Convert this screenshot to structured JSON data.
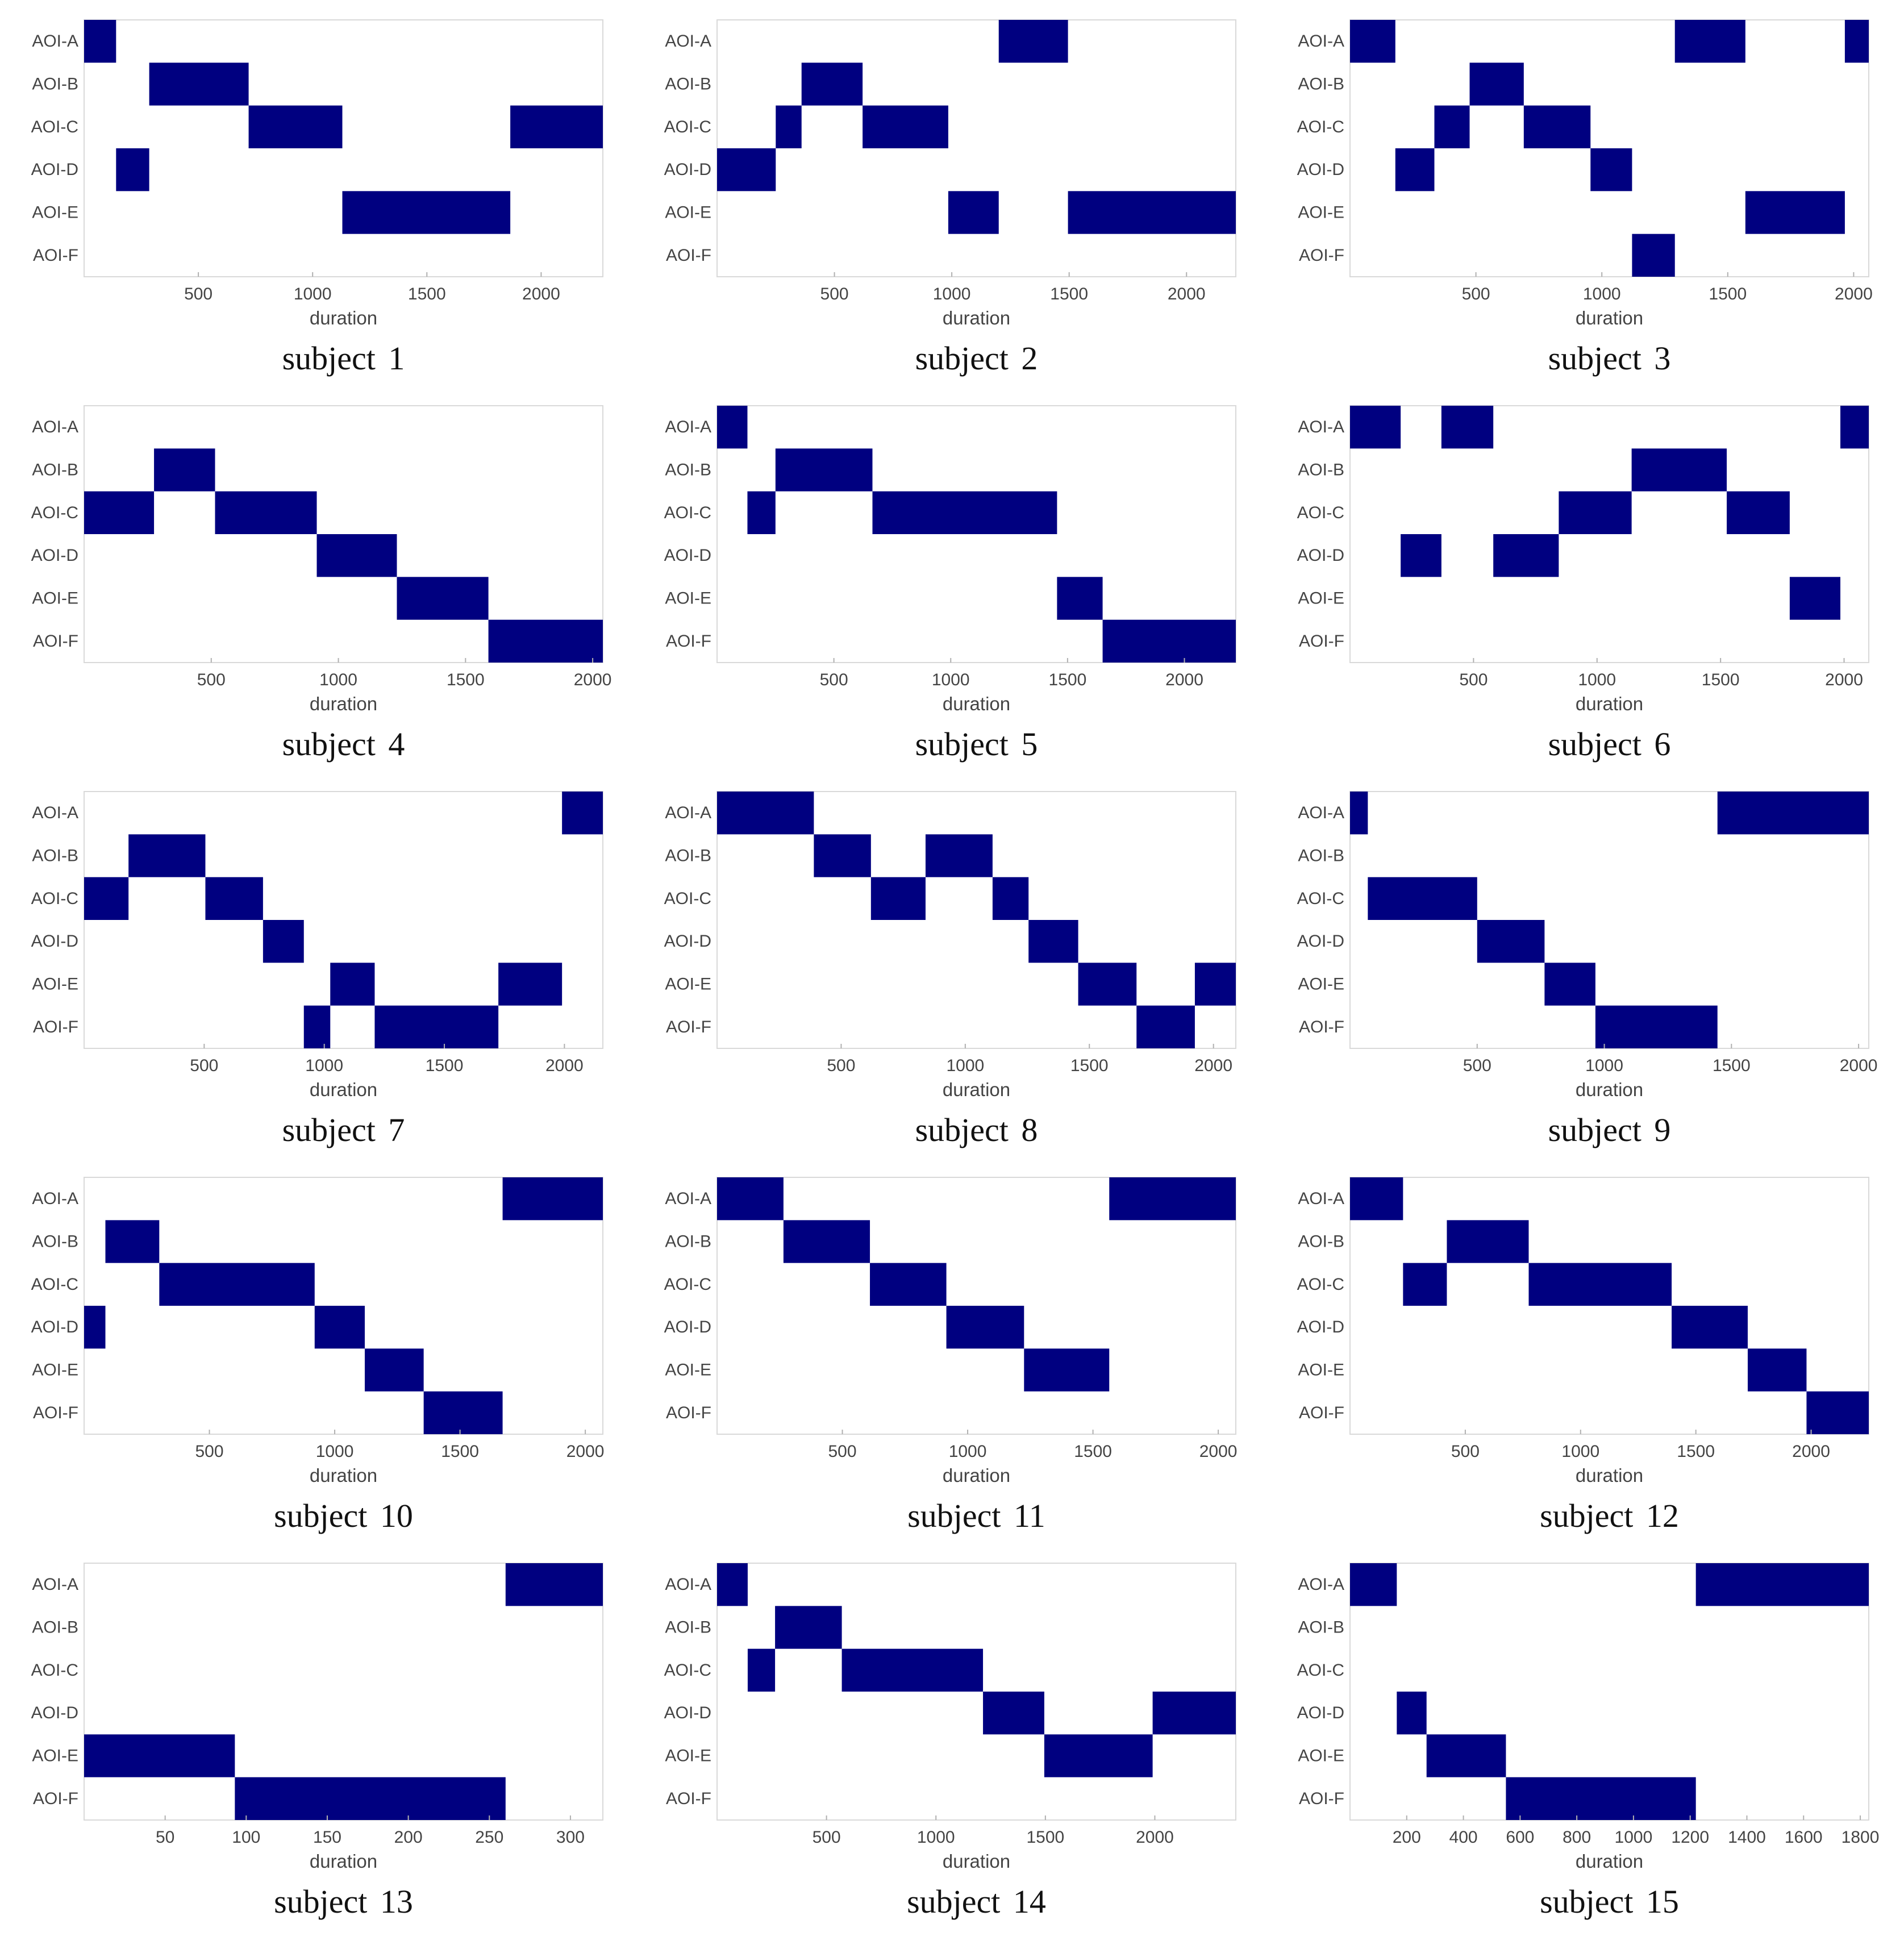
{
  "colors": {
    "bar": "#000080",
    "frame": "#d9d9d9",
    "text": "#444444",
    "background": "#ffffff"
  },
  "chart_data": [
    {
      "type": "bar",
      "caption": "subject 1",
      "xlabel": "duration",
      "categories": [
        "AOI-A",
        "AOI-B",
        "AOI-C",
        "AOI-D",
        "AOI-E",
        "AOI-F"
      ],
      "xlim": [
        0,
        2270
      ],
      "xticks": [
        500,
        1000,
        1500,
        2000
      ],
      "segments": [
        {
          "aoi": "AOI-A",
          "start": 0,
          "end": 140
        },
        {
          "aoi": "AOI-D",
          "start": 140,
          "end": 285
        },
        {
          "aoi": "AOI-B",
          "start": 285,
          "end": 720
        },
        {
          "aoi": "AOI-C",
          "start": 720,
          "end": 1130
        },
        {
          "aoi": "AOI-E",
          "start": 1130,
          "end": 1865
        },
        {
          "aoi": "AOI-C",
          "start": 1865,
          "end": 2270
        }
      ]
    },
    {
      "type": "bar",
      "caption": "subject 2",
      "xlabel": "duration",
      "categories": [
        "AOI-A",
        "AOI-B",
        "AOI-C",
        "AOI-D",
        "AOI-E",
        "AOI-F"
      ],
      "xlim": [
        0,
        2210
      ],
      "xticks": [
        500,
        1000,
        1500,
        2000
      ],
      "segments": [
        {
          "aoi": "AOI-D",
          "start": 0,
          "end": 250
        },
        {
          "aoi": "AOI-C",
          "start": 250,
          "end": 360
        },
        {
          "aoi": "AOI-B",
          "start": 360,
          "end": 620
        },
        {
          "aoi": "AOI-C",
          "start": 620,
          "end": 985
        },
        {
          "aoi": "AOI-E",
          "start": 985,
          "end": 1200
        },
        {
          "aoi": "AOI-A",
          "start": 1200,
          "end": 1495
        },
        {
          "aoi": "AOI-E",
          "start": 1495,
          "end": 2210
        }
      ]
    },
    {
      "type": "bar",
      "caption": "subject 3",
      "xlabel": "duration",
      "categories": [
        "AOI-A",
        "AOI-B",
        "AOI-C",
        "AOI-D",
        "AOI-E",
        "AOI-F"
      ],
      "xlim": [
        0,
        2060
      ],
      "xticks": [
        500,
        1000,
        1500,
        2000
      ],
      "segments": [
        {
          "aoi": "AOI-A",
          "start": 0,
          "end": 180
        },
        {
          "aoi": "AOI-D",
          "start": 180,
          "end": 335
        },
        {
          "aoi": "AOI-C",
          "start": 335,
          "end": 475
        },
        {
          "aoi": "AOI-B",
          "start": 475,
          "end": 690
        },
        {
          "aoi": "AOI-C",
          "start": 690,
          "end": 955
        },
        {
          "aoi": "AOI-D",
          "start": 955,
          "end": 1120
        },
        {
          "aoi": "AOI-F",
          "start": 1120,
          "end": 1290
        },
        {
          "aoi": "AOI-A",
          "start": 1290,
          "end": 1570
        },
        {
          "aoi": "AOI-E",
          "start": 1570,
          "end": 1965
        },
        {
          "aoi": "AOI-A",
          "start": 1965,
          "end": 2060
        }
      ]
    },
    {
      "type": "bar",
      "caption": "subject 4",
      "xlabel": "duration",
      "categories": [
        "AOI-A",
        "AOI-B",
        "AOI-C",
        "AOI-D",
        "AOI-E",
        "AOI-F"
      ],
      "xlim": [
        0,
        2040
      ],
      "xticks": [
        500,
        1000,
        1500,
        2000
      ],
      "segments": [
        {
          "aoi": "AOI-C",
          "start": 0,
          "end": 275
        },
        {
          "aoi": "AOI-B",
          "start": 275,
          "end": 515
        },
        {
          "aoi": "AOI-C",
          "start": 515,
          "end": 915
        },
        {
          "aoi": "AOI-D",
          "start": 915,
          "end": 1230
        },
        {
          "aoi": "AOI-E",
          "start": 1230,
          "end": 1590
        },
        {
          "aoi": "AOI-F",
          "start": 1590,
          "end": 2040
        }
      ]
    },
    {
      "type": "bar",
      "caption": "subject 5",
      "xlabel": "duration",
      "categories": [
        "AOI-A",
        "AOI-B",
        "AOI-C",
        "AOI-D",
        "AOI-E",
        "AOI-F"
      ],
      "xlim": [
        0,
        2220
      ],
      "xticks": [
        500,
        1000,
        1500,
        2000
      ],
      "segments": [
        {
          "aoi": "AOI-A",
          "start": 0,
          "end": 130
        },
        {
          "aoi": "AOI-C",
          "start": 130,
          "end": 250
        },
        {
          "aoi": "AOI-B",
          "start": 250,
          "end": 665
        },
        {
          "aoi": "AOI-C",
          "start": 665,
          "end": 1455
        },
        {
          "aoi": "AOI-E",
          "start": 1455,
          "end": 1650
        },
        {
          "aoi": "AOI-F",
          "start": 1650,
          "end": 2220
        }
      ]
    },
    {
      "type": "bar",
      "caption": "subject 6",
      "xlabel": "duration",
      "categories": [
        "AOI-A",
        "AOI-B",
        "AOI-C",
        "AOI-D",
        "AOI-E",
        "AOI-F"
      ],
      "xlim": [
        0,
        2100
      ],
      "xticks": [
        500,
        1000,
        1500,
        2000
      ],
      "segments": [
        {
          "aoi": "AOI-A",
          "start": 0,
          "end": 205
        },
        {
          "aoi": "AOI-D",
          "start": 205,
          "end": 370
        },
        {
          "aoi": "AOI-A",
          "start": 370,
          "end": 580
        },
        {
          "aoi": "AOI-D",
          "start": 580,
          "end": 845
        },
        {
          "aoi": "AOI-C",
          "start": 845,
          "end": 1140
        },
        {
          "aoi": "AOI-B",
          "start": 1140,
          "end": 1525
        },
        {
          "aoi": "AOI-C",
          "start": 1525,
          "end": 1780
        },
        {
          "aoi": "AOI-E",
          "start": 1780,
          "end": 1985
        },
        {
          "aoi": "AOI-A",
          "start": 1985,
          "end": 2100
        }
      ]
    },
    {
      "type": "bar",
      "caption": "subject 7",
      "xlabel": "duration",
      "categories": [
        "AOI-A",
        "AOI-B",
        "AOI-C",
        "AOI-D",
        "AOI-E",
        "AOI-F"
      ],
      "xlim": [
        0,
        2160
      ],
      "xticks": [
        500,
        1000,
        1500,
        2000
      ],
      "segments": [
        {
          "aoi": "AOI-C",
          "start": 0,
          "end": 185
        },
        {
          "aoi": "AOI-B",
          "start": 185,
          "end": 505
        },
        {
          "aoi": "AOI-C",
          "start": 505,
          "end": 745
        },
        {
          "aoi": "AOI-D",
          "start": 745,
          "end": 915
        },
        {
          "aoi": "AOI-F",
          "start": 915,
          "end": 1025
        },
        {
          "aoi": "AOI-E",
          "start": 1025,
          "end": 1210
        },
        {
          "aoi": "AOI-F",
          "start": 1210,
          "end": 1725
        },
        {
          "aoi": "AOI-E",
          "start": 1725,
          "end": 1990
        },
        {
          "aoi": "AOI-A",
          "start": 1990,
          "end": 2160
        }
      ]
    },
    {
      "type": "bar",
      "caption": "subject 8",
      "xlabel": "duration",
      "categories": [
        "AOI-A",
        "AOI-B",
        "AOI-C",
        "AOI-D",
        "AOI-E",
        "AOI-F"
      ],
      "xlim": [
        0,
        2090
      ],
      "xticks": [
        500,
        1000,
        1500,
        2000
      ],
      "segments": [
        {
          "aoi": "AOI-A",
          "start": 0,
          "end": 390
        },
        {
          "aoi": "AOI-B",
          "start": 390,
          "end": 620
        },
        {
          "aoi": "AOI-C",
          "start": 620,
          "end": 840
        },
        {
          "aoi": "AOI-B",
          "start": 840,
          "end": 1110
        },
        {
          "aoi": "AOI-C",
          "start": 1110,
          "end": 1255
        },
        {
          "aoi": "AOI-D",
          "start": 1255,
          "end": 1455
        },
        {
          "aoi": "AOI-E",
          "start": 1455,
          "end": 1690
        },
        {
          "aoi": "AOI-F",
          "start": 1690,
          "end": 1925
        },
        {
          "aoi": "AOI-E",
          "start": 1925,
          "end": 2090
        }
      ]
    },
    {
      "type": "bar",
      "caption": "subject 9",
      "xlabel": "duration",
      "categories": [
        "AOI-A",
        "AOI-B",
        "AOI-C",
        "AOI-D",
        "AOI-E",
        "AOI-F"
      ],
      "xlim": [
        0,
        2040
      ],
      "xticks": [
        500,
        1000,
        1500,
        2000
      ],
      "segments": [
        {
          "aoi": "AOI-A",
          "start": 0,
          "end": 70
        },
        {
          "aoi": "AOI-C",
          "start": 70,
          "end": 500
        },
        {
          "aoi": "AOI-D",
          "start": 500,
          "end": 765
        },
        {
          "aoi": "AOI-E",
          "start": 765,
          "end": 965
        },
        {
          "aoi": "AOI-F",
          "start": 965,
          "end": 1445
        },
        {
          "aoi": "AOI-A",
          "start": 1445,
          "end": 2040
        }
      ]
    },
    {
      "type": "bar",
      "caption": "subject 10",
      "xlabel": "duration",
      "categories": [
        "AOI-A",
        "AOI-B",
        "AOI-C",
        "AOI-D",
        "AOI-E",
        "AOI-F"
      ],
      "xlim": [
        0,
        2070
      ],
      "xticks": [
        500,
        1000,
        1500,
        2000
      ],
      "segments": [
        {
          "aoi": "AOI-D",
          "start": 0,
          "end": 85
        },
        {
          "aoi": "AOI-B",
          "start": 85,
          "end": 300
        },
        {
          "aoi": "AOI-C",
          "start": 300,
          "end": 920
        },
        {
          "aoi": "AOI-D",
          "start": 920,
          "end": 1120
        },
        {
          "aoi": "AOI-E",
          "start": 1120,
          "end": 1355
        },
        {
          "aoi": "AOI-F",
          "start": 1355,
          "end": 1670
        },
        {
          "aoi": "AOI-A",
          "start": 1670,
          "end": 2070
        }
      ]
    },
    {
      "type": "bar",
      "caption": "subject 11",
      "xlabel": "duration",
      "categories": [
        "AOI-A",
        "AOI-B",
        "AOI-C",
        "AOI-D",
        "AOI-E",
        "AOI-F"
      ],
      "xlim": [
        0,
        2070
      ],
      "xticks": [
        500,
        1000,
        1500,
        2000
      ],
      "segments": [
        {
          "aoi": "AOI-A",
          "start": 0,
          "end": 265
        },
        {
          "aoi": "AOI-B",
          "start": 265,
          "end": 610
        },
        {
          "aoi": "AOI-C",
          "start": 610,
          "end": 915
        },
        {
          "aoi": "AOI-D",
          "start": 915,
          "end": 1225
        },
        {
          "aoi": "AOI-E",
          "start": 1225,
          "end": 1565
        },
        {
          "aoi": "AOI-A",
          "start": 1565,
          "end": 2070
        }
      ]
    },
    {
      "type": "bar",
      "caption": "subject 12",
      "xlabel": "duration",
      "categories": [
        "AOI-A",
        "AOI-B",
        "AOI-C",
        "AOI-D",
        "AOI-E",
        "AOI-F"
      ],
      "xlim": [
        0,
        2250
      ],
      "xticks": [
        500,
        1000,
        1500,
        2000
      ],
      "segments": [
        {
          "aoi": "AOI-A",
          "start": 0,
          "end": 230
        },
        {
          "aoi": "AOI-C",
          "start": 230,
          "end": 420
        },
        {
          "aoi": "AOI-B",
          "start": 420,
          "end": 775
        },
        {
          "aoi": "AOI-C",
          "start": 775,
          "end": 1395
        },
        {
          "aoi": "AOI-D",
          "start": 1395,
          "end": 1725
        },
        {
          "aoi": "AOI-E",
          "start": 1725,
          "end": 1980
        },
        {
          "aoi": "AOI-F",
          "start": 1980,
          "end": 2250
        }
      ]
    },
    {
      "type": "bar",
      "caption": "subject 13",
      "xlabel": "duration",
      "categories": [
        "AOI-A",
        "AOI-B",
        "AOI-C",
        "AOI-D",
        "AOI-E",
        "AOI-F"
      ],
      "xlim": [
        0,
        320
      ],
      "xticks": [
        50,
        100,
        150,
        200,
        250,
        300
      ],
      "segments": [
        {
          "aoi": "AOI-E",
          "start": 0,
          "end": 93
        },
        {
          "aoi": "AOI-F",
          "start": 93,
          "end": 260
        },
        {
          "aoi": "AOI-A",
          "start": 260,
          "end": 320
        }
      ]
    },
    {
      "type": "bar",
      "caption": "subject 14",
      "xlabel": "duration",
      "categories": [
        "AOI-A",
        "AOI-B",
        "AOI-C",
        "AOI-D",
        "AOI-E",
        "AOI-F"
      ],
      "xlim": [
        0,
        2370
      ],
      "xticks": [
        500,
        1000,
        1500,
        2000
      ],
      "segments": [
        {
          "aoi": "AOI-A",
          "start": 0,
          "end": 140
        },
        {
          "aoi": "AOI-C",
          "start": 140,
          "end": 265
        },
        {
          "aoi": "AOI-B",
          "start": 265,
          "end": 570
        },
        {
          "aoi": "AOI-C",
          "start": 570,
          "end": 1215
        },
        {
          "aoi": "AOI-D",
          "start": 1215,
          "end": 1495
        },
        {
          "aoi": "AOI-E",
          "start": 1495,
          "end": 1990
        },
        {
          "aoi": "AOI-D",
          "start": 1990,
          "end": 2370
        }
      ]
    },
    {
      "type": "bar",
      "caption": "subject 15",
      "xlabel": "duration",
      "categories": [
        "AOI-A",
        "AOI-B",
        "AOI-C",
        "AOI-D",
        "AOI-E",
        "AOI-F"
      ],
      "xlim": [
        0,
        1830
      ],
      "xticks": [
        200,
        400,
        600,
        800,
        1000,
        1200,
        1400,
        1600,
        1800
      ],
      "segments": [
        {
          "aoi": "AOI-A",
          "start": 0,
          "end": 165
        },
        {
          "aoi": "AOI-D",
          "start": 165,
          "end": 270
        },
        {
          "aoi": "AOI-E",
          "start": 270,
          "end": 550
        },
        {
          "aoi": "AOI-F",
          "start": 550,
          "end": 1220
        },
        {
          "aoi": "AOI-A",
          "start": 1220,
          "end": 1830
        }
      ]
    }
  ]
}
